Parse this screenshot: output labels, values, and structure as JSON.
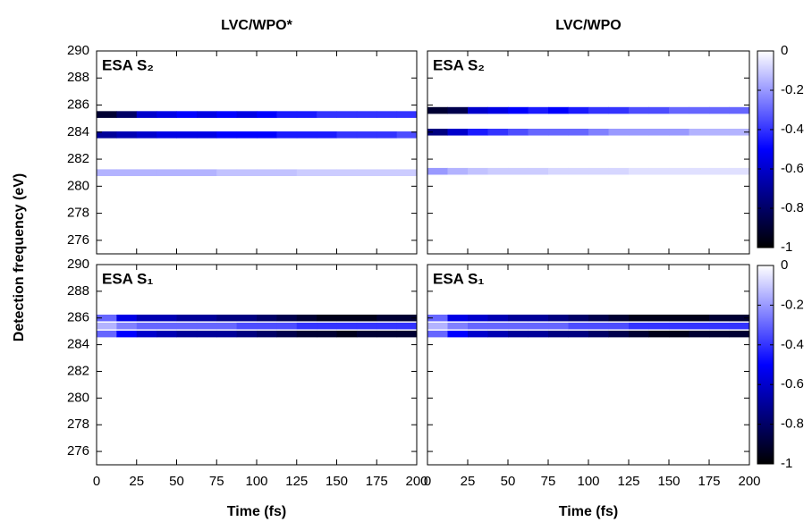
{
  "chart_data": [
    {
      "type": "heatmap",
      "title": "LVC/WPO*",
      "label": "ESA S₂",
      "ylabel": "Detection frequency (eV)",
      "xlim": [
        0,
        200
      ],
      "ylim": [
        275,
        290
      ],
      "xticks": [
        0,
        25,
        50,
        75,
        100,
        125,
        150,
        175,
        200
      ],
      "yticks": [
        276,
        278,
        280,
        282,
        284,
        286,
        288,
        290
      ],
      "colormap": [
        "#000000",
        "#0000ff",
        "#ffffff"
      ],
      "xbins": [
        0,
        12.5,
        25,
        37.5,
        50,
        62.5,
        75,
        87.5,
        100,
        112.5,
        125,
        137.5,
        150,
        162.5,
        175,
        187.5,
        200
      ],
      "y": [
        281,
        283.8,
        285.3
      ],
      "z": [
        [
          -0.15,
          -0.15,
          -0.15,
          -0.15,
          -0.15,
          -0.15,
          -0.12,
          -0.12,
          -0.12,
          -0.12,
          -0.1,
          -0.1,
          -0.1,
          -0.1,
          -0.1,
          -0.1
        ],
        [
          -0.7,
          -0.65,
          -0.6,
          -0.55,
          -0.55,
          -0.55,
          -0.5,
          -0.5,
          -0.5,
          -0.45,
          -0.45,
          -0.45,
          -0.4,
          -0.4,
          -0.4,
          -0.35
        ],
        [
          -0.9,
          -0.8,
          -0.6,
          -0.55,
          -0.5,
          -0.55,
          -0.5,
          -0.55,
          -0.5,
          -0.45,
          -0.45,
          -0.4,
          -0.4,
          -0.4,
          -0.4,
          -0.4
        ]
      ]
    },
    {
      "type": "heatmap",
      "title": "LVC/WPO",
      "label": "ESA S₂",
      "xlim": [
        0,
        200
      ],
      "ylim": [
        275,
        290
      ],
      "xticks": [
        0,
        25,
        50,
        75,
        100,
        125,
        150,
        175,
        200
      ],
      "yticks": [
        276,
        278,
        280,
        282,
        284,
        286,
        288,
        290
      ],
      "colormap": [
        "#000000",
        "#0000ff",
        "#ffffff"
      ],
      "clim": [
        -1,
        0
      ],
      "cticks": [
        0,
        -0.2,
        -0.4,
        -0.6,
        -0.8,
        -1
      ],
      "xbins": [
        0,
        12.5,
        25,
        37.5,
        50,
        62.5,
        75,
        87.5,
        100,
        112.5,
        125,
        137.5,
        150,
        162.5,
        175,
        187.5,
        200
      ],
      "y": [
        281.1,
        284,
        285.6
      ],
      "z": [
        [
          -0.2,
          -0.15,
          -0.12,
          -0.1,
          -0.1,
          -0.1,
          -0.08,
          -0.08,
          -0.08,
          -0.08,
          -0.06,
          -0.06,
          -0.06,
          -0.06,
          -0.06,
          -0.06
        ],
        [
          -0.75,
          -0.6,
          -0.45,
          -0.4,
          -0.35,
          -0.3,
          -0.3,
          -0.3,
          -0.25,
          -0.2,
          -0.2,
          -0.2,
          -0.2,
          -0.15,
          -0.15,
          -0.15
        ],
        [
          -0.9,
          -0.85,
          -0.6,
          -0.55,
          -0.5,
          -0.45,
          -0.5,
          -0.45,
          -0.4,
          -0.4,
          -0.35,
          -0.35,
          -0.3,
          -0.3,
          -0.3,
          -0.3
        ]
      ]
    },
    {
      "type": "heatmap",
      "label": "ESA S₁",
      "xlabel": "Time (fs)",
      "xlim": [
        0,
        200
      ],
      "ylim": [
        275,
        290
      ],
      "xticks": [
        0,
        25,
        50,
        75,
        100,
        125,
        150,
        175,
        200
      ],
      "yticks": [
        276,
        278,
        280,
        282,
        284,
        286,
        288,
        290
      ],
      "colormap": [
        "#000000",
        "#0000ff",
        "#ffffff"
      ],
      "xbins": [
        0,
        12.5,
        25,
        37.5,
        50,
        62.5,
        75,
        87.5,
        100,
        112.5,
        125,
        137.5,
        150,
        162.5,
        175,
        187.5,
        200
      ],
      "y": [
        284.8,
        285.4,
        286
      ],
      "z": [
        [
          -0.3,
          -0.5,
          -0.6,
          -0.65,
          -0.7,
          -0.7,
          -0.7,
          -0.75,
          -0.8,
          -0.85,
          -0.9,
          -0.9,
          -0.95,
          -0.9,
          -0.9,
          -0.9
        ],
        [
          -0.15,
          -0.25,
          -0.3,
          -0.3,
          -0.3,
          -0.3,
          -0.3,
          -0.35,
          -0.35,
          -0.35,
          -0.4,
          -0.4,
          -0.4,
          -0.4,
          -0.4,
          -0.4
        ],
        [
          -0.3,
          -0.55,
          -0.65,
          -0.65,
          -0.7,
          -0.7,
          -0.75,
          -0.75,
          -0.8,
          -0.85,
          -0.9,
          -0.95,
          -0.95,
          -0.95,
          -0.9,
          -0.9
        ]
      ]
    },
    {
      "type": "heatmap",
      "label": "ESA S₁",
      "xlabel": "Time (fs)",
      "xlim": [
        0,
        200
      ],
      "ylim": [
        275,
        290
      ],
      "xticks": [
        0,
        25,
        50,
        75,
        100,
        125,
        150,
        175,
        200
      ],
      "yticks": [
        276,
        278,
        280,
        282,
        284,
        286,
        288,
        290
      ],
      "colormap": [
        "#000000",
        "#0000ff",
        "#ffffff"
      ],
      "clim": [
        -1,
        0
      ],
      "cticks": [
        0,
        -0.2,
        -0.4,
        -0.6,
        -0.8,
        -1
      ],
      "xbins": [
        0,
        12.5,
        25,
        37.5,
        50,
        62.5,
        75,
        87.5,
        100,
        112.5,
        125,
        137.5,
        150,
        162.5,
        175,
        187.5,
        200
      ],
      "y": [
        284.8,
        285.4,
        286
      ],
      "z": [
        [
          -0.3,
          -0.5,
          -0.6,
          -0.65,
          -0.7,
          -0.7,
          -0.75,
          -0.75,
          -0.8,
          -0.85,
          -0.9,
          -0.95,
          -0.95,
          -0.9,
          -0.9,
          -0.9
        ],
        [
          -0.15,
          -0.25,
          -0.3,
          -0.3,
          -0.3,
          -0.3,
          -0.3,
          -0.35,
          -0.35,
          -0.35,
          -0.4,
          -0.4,
          -0.4,
          -0.4,
          -0.4,
          -0.4
        ],
        [
          -0.3,
          -0.55,
          -0.6,
          -0.65,
          -0.7,
          -0.7,
          -0.75,
          -0.8,
          -0.85,
          -0.9,
          -0.95,
          -0.95,
          -0.95,
          -0.95,
          -0.9,
          -0.9
        ]
      ]
    }
  ]
}
